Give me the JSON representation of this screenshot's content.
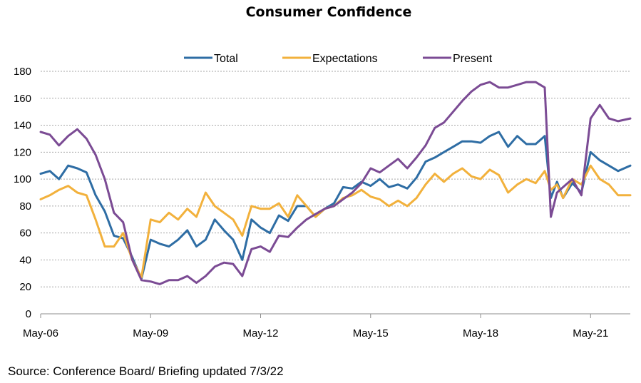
{
  "chart_data": {
    "type": "line",
    "title": "Consumer Confidence",
    "source": "Source: Conference Board/ Briefing updated 7/3/22",
    "xlabel": "",
    "ylabel": "",
    "ylim": [
      0,
      180
    ],
    "yticks": [
      0,
      20,
      40,
      60,
      80,
      100,
      120,
      140,
      160,
      180
    ],
    "x_range": [
      "May-06",
      "Jun-22"
    ],
    "x_tick_labels": [
      "May-06",
      "May-09",
      "May-12",
      "May-15",
      "May-18",
      "May-21"
    ],
    "grid": true,
    "legend_position": "top",
    "colors": {
      "Total": "#2e6da4",
      "Expectations": "#f2b13c",
      "Present": "#7b4b94"
    },
    "x": [
      "May-06",
      "Aug-06",
      "Nov-06",
      "Feb-07",
      "May-07",
      "Aug-07",
      "Nov-07",
      "Feb-08",
      "May-08",
      "Aug-08",
      "Nov-08",
      "Feb-09",
      "May-09",
      "Aug-09",
      "Nov-09",
      "Feb-10",
      "May-10",
      "Aug-10",
      "Nov-10",
      "Feb-11",
      "May-11",
      "Aug-11",
      "Nov-11",
      "Feb-12",
      "May-12",
      "Aug-12",
      "Nov-12",
      "Feb-13",
      "May-13",
      "Aug-13",
      "Nov-13",
      "Feb-14",
      "May-14",
      "Aug-14",
      "Nov-14",
      "Feb-15",
      "May-15",
      "Aug-15",
      "Nov-15",
      "Feb-16",
      "May-16",
      "Aug-16",
      "Nov-16",
      "Feb-17",
      "May-17",
      "Aug-17",
      "Nov-17",
      "Feb-18",
      "May-18",
      "Aug-18",
      "Nov-18",
      "Feb-19",
      "May-19",
      "Aug-19",
      "Nov-19",
      "Feb-20",
      "Apr-20",
      "Jun-20",
      "Aug-20",
      "Nov-20",
      "Feb-21",
      "May-21",
      "Aug-21",
      "Nov-21",
      "Feb-22",
      "Jun-22"
    ],
    "series": [
      {
        "name": "Total",
        "values": [
          104,
          106,
          100,
          110,
          108,
          105,
          88,
          76,
          58,
          56,
          42,
          26,
          55,
          52,
          50,
          55,
          62,
          50,
          55,
          70,
          62,
          55,
          40,
          70,
          64,
          60,
          73,
          69,
          80,
          80,
          72,
          78,
          82,
          94,
          93,
          98,
          95,
          100,
          94,
          96,
          93,
          101,
          113,
          116,
          120,
          124,
          128,
          128,
          127,
          132,
          135,
          124,
          132,
          126,
          126,
          132,
          86,
          98,
          86,
          97,
          90,
          120,
          114,
          110,
          106,
          110
        ]
      },
      {
        "name": "Expectations",
        "values": [
          85,
          88,
          92,
          95,
          90,
          88,
          70,
          50,
          50,
          60,
          40,
          27,
          70,
          68,
          75,
          70,
          78,
          72,
          90,
          80,
          75,
          70,
          58,
          80,
          78,
          78,
          82,
          72,
          88,
          80,
          72,
          78,
          80,
          86,
          88,
          92,
          87,
          85,
          80,
          84,
          80,
          86,
          96,
          104,
          98,
          104,
          108,
          102,
          100,
          107,
          103,
          90,
          96,
          100,
          97,
          106,
          92,
          96,
          86,
          100,
          96,
          110,
          100,
          96,
          88,
          88
        ]
      },
      {
        "name": "Present",
        "values": [
          135,
          133,
          125,
          132,
          137,
          130,
          118,
          100,
          75,
          68,
          40,
          25,
          24,
          22,
          25,
          25,
          28,
          23,
          28,
          35,
          38,
          37,
          28,
          48,
          50,
          46,
          58,
          57,
          64,
          70,
          74,
          78,
          80,
          85,
          90,
          97,
          108,
          105,
          110,
          115,
          108,
          116,
          125,
          138,
          142,
          150,
          158,
          165,
          170,
          172,
          168,
          168,
          170,
          172,
          172,
          168,
          72,
          90,
          94,
          100,
          88,
          145,
          155,
          145,
          143,
          145
        ]
      }
    ]
  }
}
